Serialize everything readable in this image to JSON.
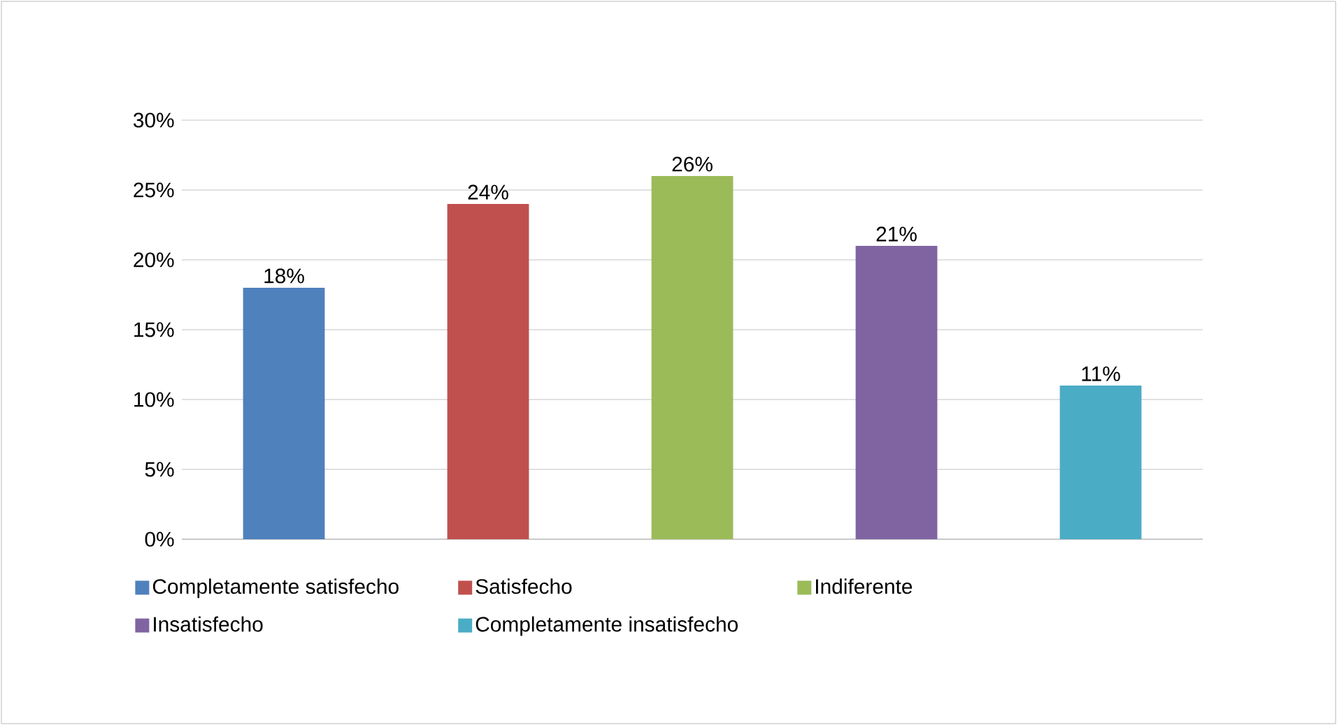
{
  "chart_data": {
    "type": "bar",
    "categories": [
      null
    ],
    "series": [
      {
        "name": "Completamente satisfecho",
        "color": "#4f81bd",
        "values": [
          18
        ],
        "value_labels": [
          "18%"
        ]
      },
      {
        "name": "Satisfecho",
        "color": "#c0504d",
        "values": [
          24
        ],
        "value_labels": [
          "24%"
        ]
      },
      {
        "name": "Indiferente",
        "color": "#9bbb59",
        "values": [
          26
        ],
        "value_labels": [
          "26%"
        ]
      },
      {
        "name": "Insatisfecho",
        "color": "#8064a2",
        "values": [
          21
        ],
        "value_labels": [
          "21%"
        ]
      },
      {
        "name": "Completamente insatisfecho",
        "color": "#4bacc6",
        "values": [
          11
        ],
        "value_labels": [
          "11%"
        ]
      }
    ],
    "ylim": [
      0,
      30
    ],
    "yticks": [
      {
        "value": 0,
        "label": "0%"
      },
      {
        "value": 5,
        "label": "5%"
      },
      {
        "value": 10,
        "label": "10%"
      },
      {
        "value": 15,
        "label": "15%"
      },
      {
        "value": 20,
        "label": "20%"
      },
      {
        "value": 25,
        "label": "25%"
      },
      {
        "value": 30,
        "label": "30%"
      }
    ],
    "grid": "y",
    "legend": "bottom",
    "tick_labels": "y"
  }
}
